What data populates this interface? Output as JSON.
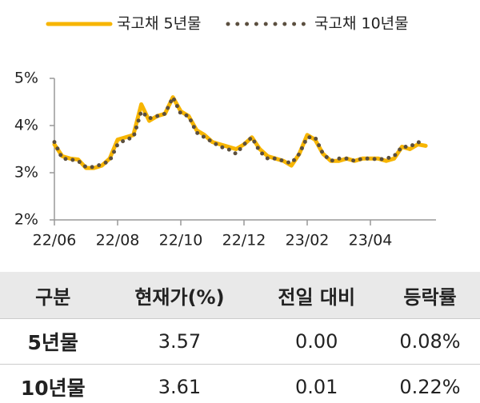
{
  "chart_data": {
    "type": "line",
    "categories": [
      "22/06",
      null,
      null,
      null,
      null,
      null,
      null,
      null,
      "22/08",
      null,
      null,
      null,
      null,
      null,
      null,
      null,
      "22/10",
      null,
      null,
      null,
      null,
      null,
      null,
      null,
      "22/12",
      null,
      null,
      null,
      null,
      null,
      null,
      null,
      "23/02",
      null,
      null,
      null,
      null,
      null,
      null,
      null,
      "23/04",
      null,
      null,
      null,
      null,
      null,
      null,
      null
    ],
    "series": [
      {
        "name": "국고채 5년물",
        "color": "#f7b500",
        "style": "solid",
        "values": [
          3.6,
          3.35,
          3.3,
          3.28,
          3.1,
          3.1,
          3.15,
          3.3,
          3.7,
          3.75,
          3.8,
          4.45,
          4.1,
          4.2,
          4.25,
          4.6,
          4.3,
          4.2,
          3.9,
          3.8,
          3.65,
          3.6,
          3.55,
          3.5,
          3.6,
          3.75,
          3.5,
          3.35,
          3.3,
          3.25,
          3.15,
          3.4,
          3.8,
          3.7,
          3.4,
          3.25,
          3.25,
          3.3,
          3.25,
          3.3,
          3.3,
          3.3,
          3.25,
          3.3,
          3.55,
          3.5,
          3.6,
          3.57
        ]
      },
      {
        "name": "국고채 10년물",
        "color": "#5b4f3f",
        "style": "dotted",
        "values": [
          3.65,
          3.3,
          3.28,
          3.25,
          3.12,
          3.12,
          3.18,
          3.25,
          3.6,
          3.7,
          3.75,
          4.3,
          4.15,
          4.2,
          4.25,
          4.6,
          4.25,
          4.2,
          3.85,
          3.75,
          3.65,
          3.55,
          3.5,
          3.4,
          3.6,
          3.75,
          3.45,
          3.3,
          3.3,
          3.25,
          3.2,
          3.4,
          3.75,
          3.75,
          3.4,
          3.25,
          3.3,
          3.3,
          3.25,
          3.3,
          3.3,
          3.28,
          3.3,
          3.35,
          3.55,
          3.55,
          3.65,
          3.61
        ]
      }
    ],
    "ylim": [
      2,
      5
    ],
    "yticks": [
      {
        "value": 2,
        "label": "2%"
      },
      {
        "value": 3,
        "label": "3%"
      },
      {
        "value": 4,
        "label": "4%"
      },
      {
        "value": 5,
        "label": "5%"
      }
    ],
    "grid": false,
    "legend": "top"
  },
  "table": {
    "header": [
      "구분",
      "현재가(%)",
      "전일 대비",
      "등락률"
    ],
    "rows": [
      [
        "5년물",
        "3.57",
        "0.00",
        "0.08%"
      ],
      [
        "10년물",
        "3.61",
        "0.01",
        "0.22%"
      ]
    ]
  }
}
